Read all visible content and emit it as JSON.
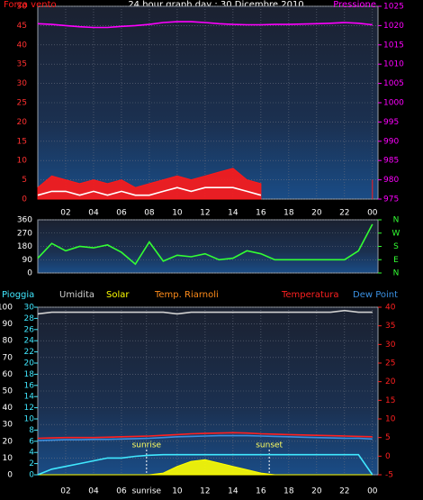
{
  "chart_data": [
    {
      "type": "line",
      "title": "24 hour graph day : 30 Dicembre 2010",
      "x": [
        0,
        1,
        2,
        3,
        4,
        5,
        6,
        7,
        8,
        9,
        10,
        11,
        12,
        13,
        14,
        15,
        16,
        17,
        18,
        19,
        20,
        21,
        22,
        23,
        24
      ],
      "xlim": [
        0,
        24.4
      ],
      "xticks": [
        {
          "value": 2,
          "label": "02"
        },
        {
          "value": 4,
          "label": "04"
        },
        {
          "value": 6,
          "label": "06"
        },
        {
          "value": 8,
          "label": "08"
        },
        10,
        12,
        14,
        16,
        18,
        20,
        22,
        {
          "value": 24,
          "label": "00"
        }
      ],
      "ylim": [
        0,
        50
      ],
      "yticks": [
        0,
        5,
        10,
        15,
        20,
        25,
        30,
        35,
        40,
        45,
        50
      ],
      "y2lim": [
        975,
        1025
      ],
      "y2ticks": [
        975,
        980,
        985,
        990,
        995,
        1000,
        1005,
        1010,
        1015,
        1020,
        1025
      ],
      "grid": true,
      "series": [
        {
          "name": "Forza vento",
          "color": "#ff1a1a",
          "style": "area",
          "values": [
            3,
            6,
            5,
            4,
            5,
            4,
            5,
            3,
            4,
            5,
            6,
            5,
            6,
            7,
            8,
            5,
            4,
            null,
            null,
            null,
            null,
            null,
            null,
            null,
            5
          ]
        },
        {
          "color": "#ffffff",
          "values": [
            1,
            2,
            2,
            1,
            2,
            1,
            2,
            1,
            1,
            2,
            3,
            2,
            3,
            3,
            3,
            2,
            1,
            null,
            null,
            null,
            null,
            null,
            null,
            null,
            2
          ]
        },
        {
          "name": "Pressione",
          "color": "#ff00ff",
          "axis": "y2",
          "values": [
            1020.5,
            1020.3,
            1020,
            1019.7,
            1019.5,
            1019.5,
            1019.8,
            1020,
            1020.3,
            1020.8,
            1021,
            1021,
            1020.8,
            1020.5,
            1020.3,
            1020.2,
            1020.2,
            1020.3,
            1020.3,
            1020.4,
            1020.5,
            1020.6,
            1020.8,
            1020.6,
            1020.2
          ]
        }
      ]
    },
    {
      "type": "line",
      "x": [
        0,
        1,
        2,
        3,
        4,
        5,
        6,
        7,
        8,
        9,
        10,
        11,
        12,
        13,
        14,
        15,
        16,
        17,
        18,
        19,
        20,
        21,
        22,
        23,
        24
      ],
      "xlim": [
        0,
        24.4
      ],
      "ylim": [
        0,
        360
      ],
      "yticks": [
        0,
        90,
        180,
        270,
        360
      ],
      "y2lim": [
        0,
        360
      ],
      "y2ticks": [
        {
          "value": 0,
          "label": "N"
        },
        {
          "value": 90,
          "label": "E"
        },
        {
          "value": 180,
          "label": "S"
        },
        {
          "value": 270,
          "label": "W"
        },
        {
          "value": 360,
          "label": "N"
        }
      ],
      "grid": true,
      "series": [
        {
          "color": "#33ff33",
          "values": [
            100,
            200,
            150,
            180,
            170,
            190,
            140,
            60,
            210,
            80,
            120,
            110,
            130,
            90,
            100,
            150,
            130,
            90,
            90,
            90,
            90,
            90,
            90,
            150,
            330
          ]
        }
      ]
    },
    {
      "type": "line",
      "x": [
        0,
        1,
        2,
        3,
        4,
        5,
        6,
        7,
        8,
        9,
        10,
        11,
        12,
        13,
        14,
        15,
        16,
        17,
        18,
        19,
        20,
        21,
        22,
        23,
        24
      ],
      "xlim": [
        0,
        24.4
      ],
      "xticks": [
        {
          "value": 2,
          "label": "02"
        },
        {
          "value": 4,
          "label": "04"
        },
        {
          "value": 6,
          "label": "06"
        },
        {
          "value": 7.8,
          "label": "sunrise"
        },
        10,
        12,
        14,
        16,
        18,
        20,
        22,
        {
          "value": 24,
          "label": "00"
        }
      ],
      "ylim": [
        0,
        100
      ],
      "yticks": [
        0,
        10,
        20,
        30,
        40,
        50,
        60,
        70,
        80,
        90,
        100
      ],
      "y2lim": [
        -5,
        40
      ],
      "y2ticks": [
        -5,
        0,
        5,
        10,
        15,
        20,
        25,
        30,
        35,
        40
      ],
      "y3lim": [
        0,
        30
      ],
      "y3ticks": [
        0,
        2,
        4,
        6,
        8,
        10,
        12,
        14,
        16,
        18,
        20,
        22,
        24,
        26,
        28,
        30
      ],
      "grid": true,
      "extra_labels": [
        "Temp. Riarnoli"
      ],
      "annotations": [
        {
          "x": 7.8,
          "label": "sunrise"
        },
        {
          "x": 16.6,
          "label": "sunset"
        }
      ],
      "series": [
        {
          "name": "Umidita",
          "color": "#d0d0d0",
          "values": [
            96,
            97,
            97,
            97,
            97,
            97,
            97,
            97,
            97,
            97,
            96,
            97,
            97,
            97,
            97,
            97,
            97,
            97,
            97,
            97,
            97,
            97,
            98,
            97,
            97
          ]
        },
        {
          "name": "Solar",
          "color": "#ffff00",
          "style": "area",
          "values": [
            0,
            0,
            0,
            0,
            0,
            0,
            0,
            0,
            0,
            1,
            5,
            8,
            9,
            7,
            5,
            3,
            1,
            0,
            0,
            0,
            0,
            0,
            0,
            0,
            0
          ]
        },
        {
          "name": "Temperatura",
          "color": "#ff2020",
          "axis": "y2",
          "values": [
            4.8,
            4.9,
            5,
            5,
            5,
            5.1,
            5.2,
            5.3,
            5.4,
            5.6,
            5.8,
            6,
            6.1,
            6.2,
            6.3,
            6.2,
            6,
            5.9,
            5.8,
            5.7,
            5.6,
            5.5,
            5.4,
            5.3,
            5.2
          ]
        },
        {
          "name": "Dew Point",
          "color": "#3a8fe0",
          "axis": "y2",
          "values": [
            4.2,
            4.3,
            4.4,
            4.4,
            4.5,
            4.5,
            4.6,
            4.7,
            4.8,
            5,
            5.2,
            5.3,
            5.4,
            5.5,
            5.5,
            5.5,
            5.4,
            5.3,
            5.2,
            5.1,
            5,
            4.9,
            4.8,
            4.8,
            4.6
          ]
        },
        {
          "name": "Pioggia",
          "color": "#40e8ff",
          "axis": "y3",
          "values": [
            0,
            1,
            1.5,
            2,
            2.5,
            3,
            3,
            3.3,
            3.5,
            3.6,
            3.6,
            3.6,
            3.6,
            3.6,
            3.6,
            3.6,
            3.6,
            3.6,
            3.6,
            3.6,
            3.6,
            3.6,
            3.6,
            3.6,
            0
          ]
        }
      ]
    }
  ]
}
